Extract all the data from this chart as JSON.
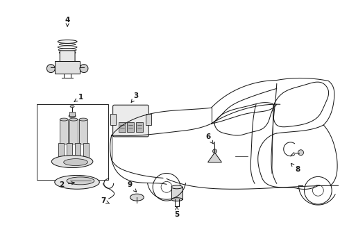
{
  "bg_color": "#ffffff",
  "line_color": "#1a1a1a",
  "fig_width": 4.9,
  "fig_height": 3.6,
  "dpi": 100,
  "label_fs": 7.5,
  "lw": 0.75
}
